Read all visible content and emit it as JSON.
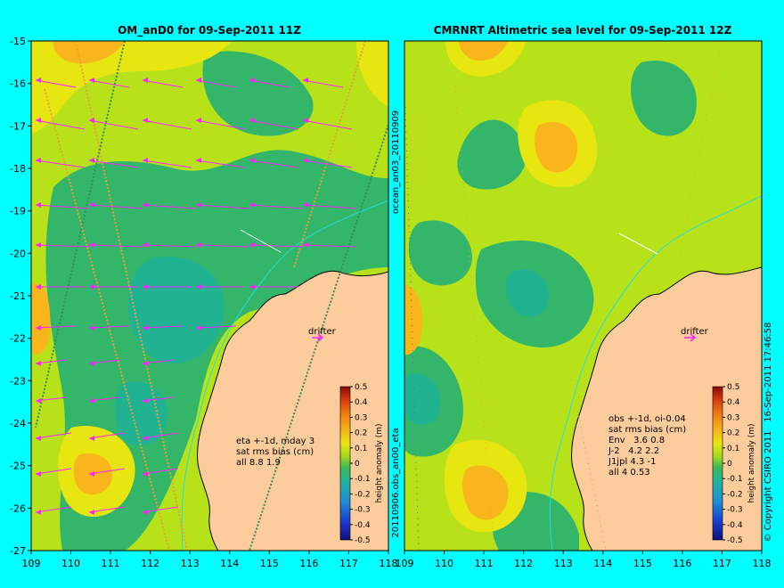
{
  "chart_data": [
    {
      "type": "heatmap",
      "title": "OM_anD0 for 09-Sep-2011 11Z",
      "x_ticks": [
        109,
        110,
        111,
        112,
        113,
        114,
        115,
        116,
        117,
        118
      ],
      "y_ticks": [
        -15,
        -16,
        -17,
        -18,
        -19,
        -20,
        -21,
        -22,
        -23,
        -24,
        -25,
        -26,
        -27
      ],
      "xlim": [
        109,
        118
      ],
      "ylim": [
        -27,
        -15
      ],
      "annotations": [
        "drifter"
      ],
      "info_lines": [
        "eta +-1d, mday 3",
        "sat rms bias (cm)",
        "all 8.8 1.9"
      ],
      "side_label": "20110906.obs_an00_eta",
      "side_label_top": "ocean_an03_20110909",
      "colorbar": {
        "label": "height anomaly (m)",
        "ticks": [
          "0.5",
          "0.4",
          "0.3",
          "0.2",
          "0.1",
          "0",
          "-0.1",
          "-0.2",
          "-0.3",
          "-0.4",
          "-0.5"
        ],
        "range": [
          -0.5,
          0.5
        ]
      }
    },
    {
      "type": "heatmap",
      "title": "CMRNRT Altimetric sea level  for 09-Sep-2011 12Z",
      "x_ticks": [
        109,
        110,
        111,
        112,
        113,
        114,
        115,
        116,
        117,
        118
      ],
      "xlim": [
        109,
        118
      ],
      "ylim": [
        -27,
        -15
      ],
      "annotations": [
        "drifter"
      ],
      "info_lines": [
        "obs +-1d, oi-0.04",
        "sat rms bias (cm)",
        "Env   3.6 0.8",
        "J-2   4.2 2.2",
        "J1jpl 4.3 -1",
        "all 4 0.53"
      ],
      "side_label": "© Copyright CSIRO 2011   16-Sep-2011 17:46:58",
      "colorbar": {
        "label": "height anomaly (m)",
        "ticks": [
          "0.5",
          "0.4",
          "0.3",
          "0.2",
          "0.1",
          "0",
          "-0.1",
          "-0.2",
          "-0.3",
          "-0.4",
          "-0.5"
        ],
        "range": [
          -0.5,
          0.5
        ]
      }
    }
  ],
  "colors": {
    "background": "#00ffff",
    "land": "#fccc9c",
    "positive": "#f9b61c",
    "zero": "#b7e21a",
    "negative": "#33b66a",
    "vector": "#ff22ff"
  }
}
